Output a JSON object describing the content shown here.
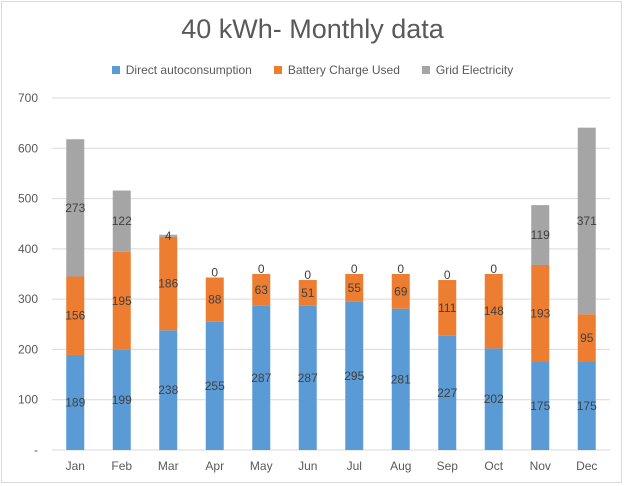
{
  "chart_data": {
    "type": "bar",
    "stacked": true,
    "title": "40 kWh- Monthly data",
    "categories": [
      "Jan",
      "Feb",
      "Mar",
      "Apr",
      "May",
      "Jun",
      "Jul",
      "Aug",
      "Sep",
      "Oct",
      "Nov",
      "Dec"
    ],
    "series": [
      {
        "name": "Direct autoconsumption",
        "color": "#5b9bd5",
        "values": [
          189,
          199,
          238,
          255,
          287,
          287,
          295,
          281,
          227,
          202,
          175,
          175
        ]
      },
      {
        "name": "Battery Charge Used",
        "color": "#ed7d31",
        "values": [
          156,
          195,
          186,
          88,
          63,
          51,
          55,
          69,
          111,
          148,
          193,
          95
        ]
      },
      {
        "name": "Grid Electricity",
        "color": "#a5a5a5",
        "values": [
          273,
          122,
          4,
          0,
          0,
          0,
          0,
          0,
          0,
          0,
          119,
          371
        ]
      }
    ],
    "yticks": [
      "-",
      "100",
      "200",
      "300",
      "400",
      "500",
      "600",
      "700"
    ],
    "ylim": [
      0,
      700
    ],
    "grid": true,
    "legend_position": "top"
  }
}
